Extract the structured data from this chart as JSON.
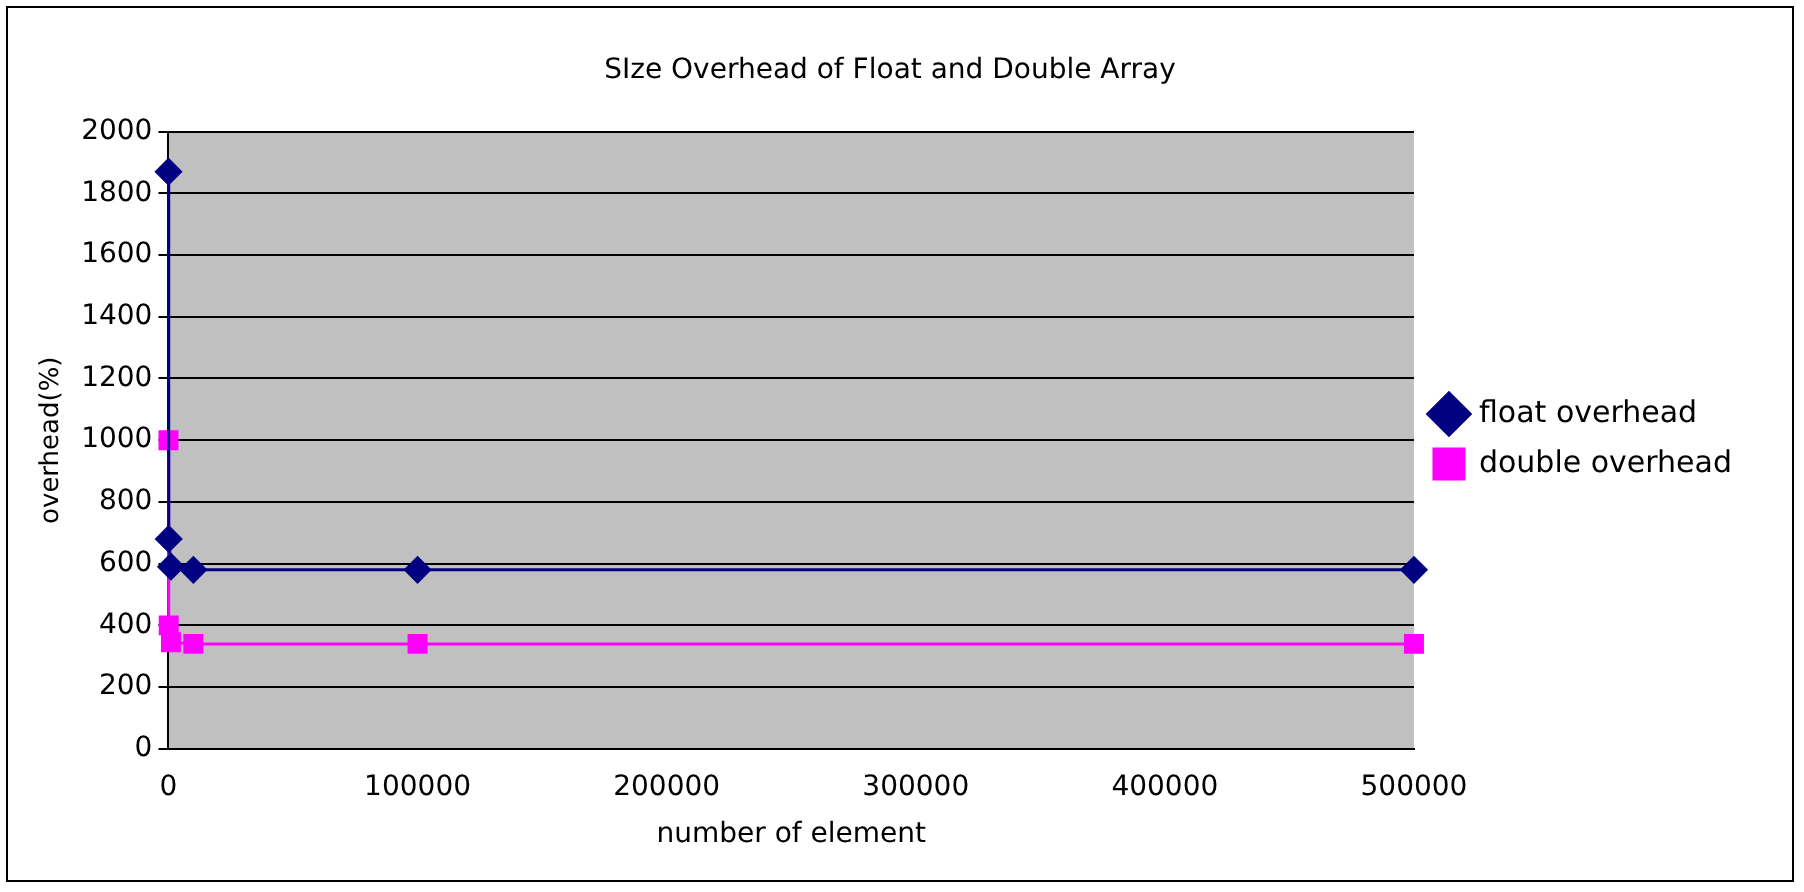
{
  "chart_data": {
    "type": "line",
    "title": "SIze Overhead of Float and Double Array",
    "xlabel": "number of element",
    "ylabel": "overhead(%)",
    "x": [
      10,
      100,
      1000,
      10000,
      100000,
      500000
    ],
    "series": [
      {
        "name": "float overhead",
        "color": "#000080",
        "marker": "diamond",
        "values": [
          1870,
          680,
          590,
          580,
          580,
          580
        ]
      },
      {
        "name": "double overhead",
        "color": "#ff00ff",
        "marker": "square",
        "values": [
          1000,
          400,
          345,
          340,
          340,
          340
        ]
      }
    ],
    "xlim": [
      0,
      500000
    ],
    "xticks": [
      0,
      100000,
      200000,
      300000,
      400000,
      500000
    ],
    "ylim": [
      0,
      2000
    ],
    "yticks": [
      0,
      200,
      400,
      600,
      800,
      1000,
      1200,
      1400,
      1600,
      1800,
      2000
    ],
    "grid": "y",
    "legend": "right"
  }
}
